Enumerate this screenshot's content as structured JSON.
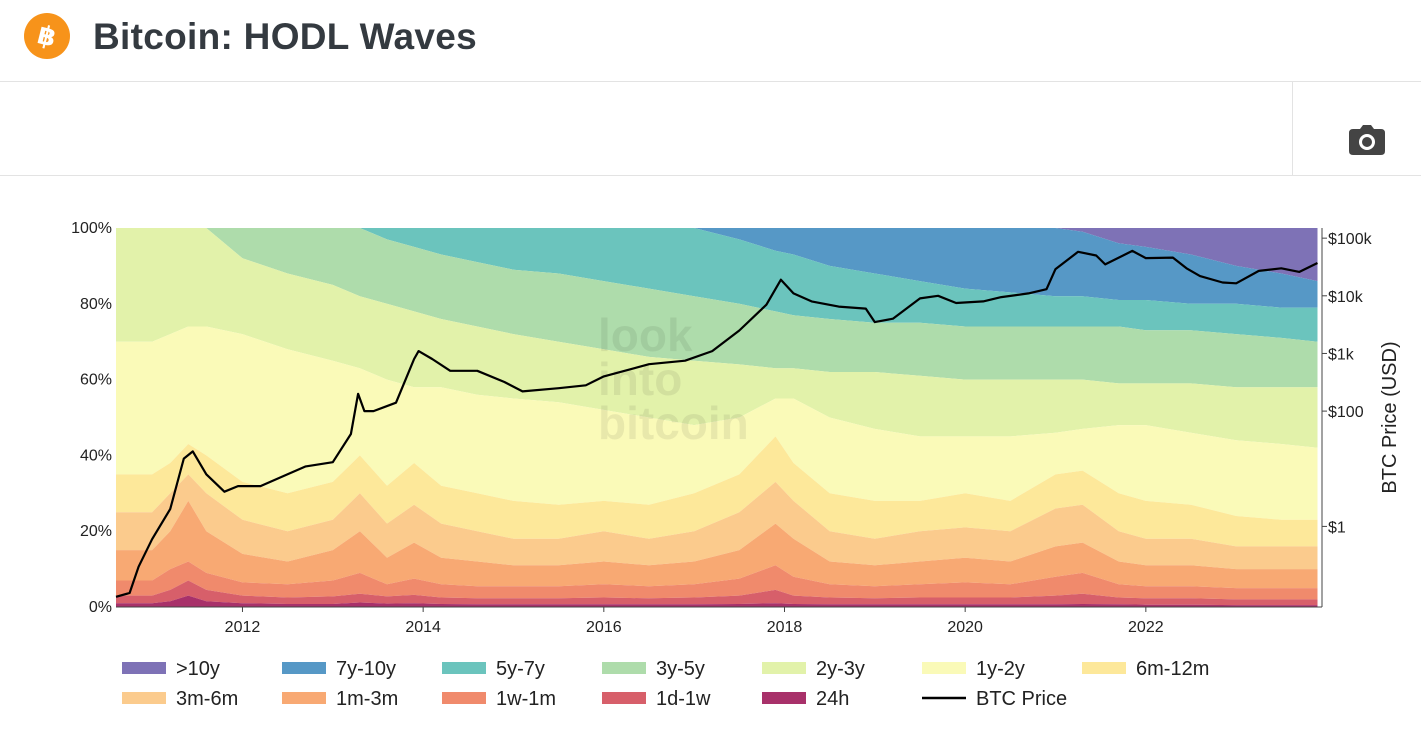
{
  "header": {
    "title": "Bitcoin: HODL Waves",
    "logo_icon": "bitcoin-logo-icon",
    "logo_color": "#f7931a"
  },
  "toolbar": {
    "screenshot_icon": "camera-icon"
  },
  "chart_data": {
    "type": "area",
    "stacked": true,
    "y_unit": "% of BTC supply",
    "yticks": [
      "0%",
      "20%",
      "40%",
      "60%",
      "80%",
      "100%"
    ],
    "ylim": [
      0,
      100
    ],
    "x": [
      2010.6,
      2011.0,
      2011.2,
      2011.4,
      2011.6,
      2012.0,
      2012.5,
      2013.0,
      2013.3,
      2013.6,
      2013.9,
      2014.2,
      2014.6,
      2015.0,
      2015.5,
      2016.0,
      2016.5,
      2017.0,
      2017.5,
      2017.9,
      2018.1,
      2018.5,
      2019.0,
      2019.5,
      2020.0,
      2020.5,
      2021.0,
      2021.3,
      2021.7,
      2022.0,
      2022.5,
      2023.0,
      2023.5,
      2023.9
    ],
    "xticks": [
      "2012",
      "2014",
      "2016",
      "2018",
      "2020",
      "2022"
    ],
    "xlim": [
      2010.6,
      2023.95
    ],
    "y2_label": "BTC Price (USD)",
    "y2_scale": "log",
    "y2_ticks": [
      "$1",
      "$100",
      "$1k",
      "$10k",
      "$100k"
    ],
    "y2_range": [
      0.04,
      150000
    ],
    "series": [
      {
        "name": "24h",
        "color": "#a8316a",
        "values": [
          1.0,
          1.0,
          1.5,
          3.0,
          1.5,
          1.0,
          0.8,
          0.8,
          1.2,
          0.9,
          1.0,
          0.8,
          0.7,
          0.7,
          0.7,
          0.7,
          0.7,
          0.7,
          0.8,
          1.0,
          0.8,
          0.7,
          0.7,
          0.7,
          0.7,
          0.7,
          0.7,
          0.8,
          0.7,
          0.6,
          0.6,
          0.5,
          0.5,
          0.5
        ]
      },
      {
        "name": "1d-1w",
        "color": "#d75f6a",
        "values": [
          3.0,
          3.0,
          4.5,
          7.0,
          4.5,
          3.0,
          2.5,
          2.8,
          3.5,
          2.8,
          3.2,
          2.5,
          2.3,
          2.3,
          2.3,
          2.5,
          2.3,
          2.5,
          3.0,
          4.5,
          3.0,
          2.5,
          2.3,
          2.5,
          2.5,
          2.5,
          3.0,
          3.5,
          2.5,
          2.3,
          2.3,
          2.0,
          2.0,
          2.0
        ]
      },
      {
        "name": "1w-1m",
        "color": "#f08a6c",
        "values": [
          7.0,
          7.0,
          10.0,
          12.0,
          9.0,
          6.5,
          6.0,
          7.0,
          9.0,
          6.0,
          7.5,
          6.0,
          5.5,
          5.5,
          5.5,
          6.0,
          5.5,
          6.0,
          7.5,
          11.0,
          8.0,
          6.0,
          5.5,
          6.0,
          6.5,
          6.0,
          8.0,
          9.0,
          6.0,
          5.5,
          5.5,
          5.0,
          5.0,
          5.0
        ]
      },
      {
        "name": "1m-3m",
        "color": "#f8a973",
        "values": [
          15.0,
          15.0,
          20.0,
          28.0,
          20.0,
          14.0,
          12.0,
          15.0,
          20.0,
          13.0,
          17.0,
          13.0,
          12.0,
          11.0,
          11.0,
          12.0,
          11.0,
          12.0,
          15.0,
          22.0,
          18.0,
          12.0,
          11.0,
          12.0,
          13.0,
          12.0,
          16.0,
          17.0,
          12.0,
          11.0,
          11.0,
          10.0,
          10.0,
          10.0
        ]
      },
      {
        "name": "3m-6m",
        "color": "#fbcb8d",
        "values": [
          25.0,
          25.0,
          30.0,
          35.0,
          30.0,
          23.0,
          20.0,
          23.0,
          30.0,
          22.0,
          27.0,
          22.0,
          20.0,
          18.0,
          18.0,
          20.0,
          18.0,
          20.0,
          25.0,
          33.0,
          28.0,
          20.0,
          18.0,
          20.0,
          21.0,
          20.0,
          26.0,
          27.0,
          20.0,
          18.0,
          18.0,
          16.0,
          16.0,
          16.0
        ]
      },
      {
        "name": "6m-12m",
        "color": "#fde89a",
        "values": [
          35.0,
          35.0,
          38.0,
          43.0,
          40.0,
          33.0,
          30.0,
          33.0,
          40.0,
          32.0,
          38.0,
          32.0,
          30.0,
          28.0,
          27.0,
          28.0,
          27.0,
          30.0,
          35.0,
          45.0,
          38.0,
          30.0,
          28.0,
          28.0,
          30.0,
          28.0,
          35.0,
          36.0,
          30.0,
          28.0,
          27.0,
          24.0,
          23.0,
          23.0
        ]
      },
      {
        "name": "1y-2y",
        "color": "#fafab8",
        "values": [
          70.0,
          70.0,
          72.0,
          74.0,
          74.0,
          72.0,
          68.0,
          65.0,
          63.0,
          60.0,
          58.0,
          58.0,
          56.0,
          55.0,
          54.0,
          52.0,
          50.0,
          48.0,
          50.0,
          55.0,
          55.0,
          50.0,
          47.0,
          45.0,
          45.0,
          45.0,
          46.0,
          47.0,
          48.0,
          48.0,
          46.0,
          44.0,
          43.0,
          42.0
        ]
      },
      {
        "name": "2y-3y",
        "color": "#e2f2aa",
        "values": [
          100.0,
          100.0,
          100.0,
          100.0,
          100.0,
          92.0,
          88.0,
          85.0,
          82.0,
          80.0,
          78.0,
          76.0,
          74.0,
          72.0,
          70.0,
          68.0,
          66.0,
          65.0,
          64.0,
          63.0,
          63.0,
          62.0,
          62.0,
          61.0,
          60.0,
          60.0,
          60.0,
          60.0,
          59.0,
          59.0,
          59.0,
          58.0,
          58.0,
          58.0
        ]
      },
      {
        "name": "3y-5y",
        "color": "#aedcab",
        "values": [
          100.0,
          100.0,
          100.0,
          100.0,
          100.0,
          100.0,
          100.0,
          100.0,
          100.0,
          97.0,
          95.0,
          93.0,
          91.0,
          89.0,
          88.0,
          86.0,
          84.0,
          82.0,
          80.0,
          78.0,
          77.0,
          76.0,
          75.0,
          75.0,
          74.0,
          74.0,
          74.0,
          74.0,
          74.0,
          73.0,
          73.0,
          72.0,
          71.0,
          70.0
        ]
      },
      {
        "name": "5y-7y",
        "color": "#6bc4bd",
        "values": [
          100.0,
          100.0,
          100.0,
          100.0,
          100.0,
          100.0,
          100.0,
          100.0,
          100.0,
          100.0,
          100.0,
          100.0,
          100.0,
          100.0,
          100.0,
          100.0,
          100.0,
          100.0,
          97.0,
          94.0,
          93.0,
          90.0,
          88.0,
          86.0,
          84.0,
          83.0,
          82.0,
          82.0,
          81.0,
          81.0,
          80.0,
          80.0,
          79.0,
          79.0
        ]
      },
      {
        "name": "7y-10y",
        "color": "#5698c6",
        "values": [
          100.0,
          100.0,
          100.0,
          100.0,
          100.0,
          100.0,
          100.0,
          100.0,
          100.0,
          100.0,
          100.0,
          100.0,
          100.0,
          100.0,
          100.0,
          100.0,
          100.0,
          100.0,
          100.0,
          100.0,
          100.0,
          100.0,
          100.0,
          100.0,
          100.0,
          100.0,
          100.0,
          99.0,
          96.0,
          95.0,
          93.0,
          90.0,
          88.0,
          86.0
        ]
      },
      {
        "name": ">10y",
        "color": "#7e72b6",
        "values": [
          100.0,
          100.0,
          100.0,
          100.0,
          100.0,
          100.0,
          100.0,
          100.0,
          100.0,
          100.0,
          100.0,
          100.0,
          100.0,
          100.0,
          100.0,
          100.0,
          100.0,
          100.0,
          100.0,
          100.0,
          100.0,
          100.0,
          100.0,
          100.0,
          100.0,
          100.0,
          100.0,
          100.0,
          100.0,
          100.0,
          100.0,
          100.0,
          100.0,
          100.0
        ]
      }
    ],
    "price": {
      "name": "BTC Price",
      "color": "#000000",
      "x": [
        2010.6,
        2010.75,
        2010.85,
        2011.0,
        2011.2,
        2011.35,
        2011.45,
        2011.6,
        2011.8,
        2011.95,
        2012.2,
        2012.5,
        2012.7,
        2013.0,
        2013.2,
        2013.28,
        2013.35,
        2013.45,
        2013.7,
        2013.9,
        2013.95,
        2014.1,
        2014.3,
        2014.6,
        2014.9,
        2015.1,
        2015.5,
        2015.8,
        2016.0,
        2016.5,
        2016.9,
        2017.2,
        2017.5,
        2017.8,
        2017.96,
        2018.1,
        2018.3,
        2018.6,
        2018.9,
        2019.0,
        2019.2,
        2019.5,
        2019.7,
        2019.9,
        2020.2,
        2020.4,
        2020.7,
        2020.9,
        2021.0,
        2021.25,
        2021.45,
        2021.55,
        2021.85,
        2022.0,
        2022.3,
        2022.45,
        2022.6,
        2022.85,
        2023.0,
        2023.25,
        2023.5,
        2023.7,
        2023.9
      ],
      "y": [
        0.06,
        0.07,
        0.2,
        0.6,
        2,
        15,
        20,
        8,
        4,
        5,
        5,
        8,
        11,
        13,
        40,
        200,
        100,
        100,
        140,
        800,
        1100,
        800,
        500,
        500,
        320,
        220,
        250,
        280,
        400,
        650,
        750,
        1100,
        2500,
        7000,
        19000,
        11000,
        8000,
        6500,
        6000,
        3500,
        4000,
        9000,
        10000,
        7500,
        8000,
        9500,
        11000,
        13000,
        29000,
        58000,
        50000,
        35000,
        60000,
        45000,
        46000,
        30000,
        22000,
        17000,
        16500,
        27000,
        30000,
        26000,
        37000
      ]
    },
    "legend": {
      "placement": "bottom",
      "items": [
        ">10y",
        "7y-10y",
        "5y-7y",
        "3y-5y",
        "2y-3y",
        "1y-2y",
        "6m-12m",
        "3m-6m",
        "1m-3m",
        "1w-1m",
        "1d-1w",
        "24h",
        "BTC Price"
      ]
    },
    "watermark": "look into bitcoin"
  }
}
